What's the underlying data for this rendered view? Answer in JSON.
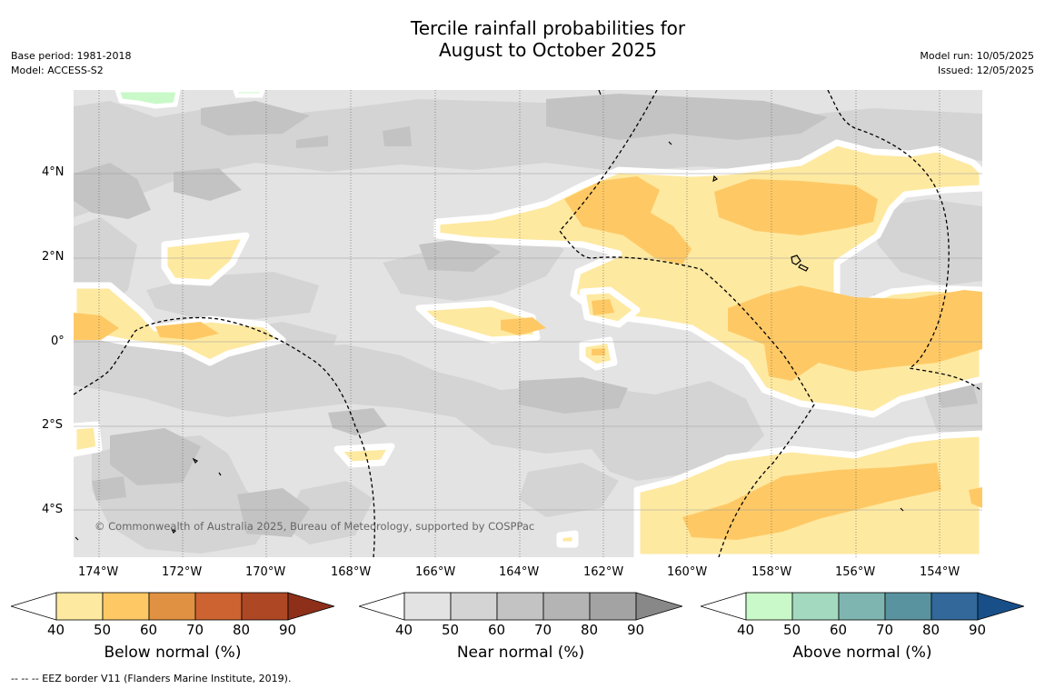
{
  "title_line1": "Tercile rainfall probabilities for",
  "title_line2": "August to October 2025",
  "base_period": "Base period: 1981-2018",
  "model": "Model: ACCESS-S2",
  "model_run": "Model run: 10/05/2025",
  "issued": "Issued: 12/05/2025",
  "copyright": "© Commonwealth of Australia 2025, Bureau of Meteorology, supported by COSPPac",
  "footer": "--  --  -- EEZ border V11 (Flanders Marine Institute, 2019).",
  "map": {
    "lon_labels": [
      "174°W",
      "172°W",
      "170°W",
      "168°W",
      "166°W",
      "164°W",
      "162°W",
      "160°W",
      "158°W",
      "156°W",
      "154°W"
    ],
    "lat_labels": [
      "4°N",
      "2°N",
      "0°",
      "2°S",
      "4°S"
    ],
    "lon_range_deg_east": [
      -174.6,
      -153.0
    ],
    "lat_range_deg": [
      -5.0,
      5.8
    ],
    "colors": {
      "ocean_base": "#e3e3e3",
      "near_normal_50": "#d4d4d4",
      "near_normal_60": "#c3c3c3",
      "below_normal_40": "#fee9a1",
      "below_normal_50": "#fec965",
      "above_normal_40": "#c9f9c9",
      "contour": "#ffffff",
      "eez_line": "#000000"
    }
  },
  "colorbars": [
    {
      "title": "Below normal (%)",
      "ticks": [
        "40",
        "50",
        "60",
        "70",
        "80",
        "90"
      ],
      "colors": [
        "#fee9a1",
        "#fec965",
        "#e09142",
        "#cd6330",
        "#ae4824",
        "#8e2f19"
      ]
    },
    {
      "title": "Near normal (%)",
      "ticks": [
        "40",
        "50",
        "60",
        "70",
        "80",
        "90"
      ],
      "colors": [
        "#e3e3e3",
        "#d4d4d4",
        "#c3c3c3",
        "#b4b4b4",
        "#a3a3a3",
        "#888888"
      ]
    },
    {
      "title": "Above normal (%)",
      "ticks": [
        "40",
        "50",
        "60",
        "70",
        "80",
        "90"
      ],
      "colors": [
        "#c9f9c9",
        "#a3d9bf",
        "#7fb5b0",
        "#5a93a0",
        "#32689a",
        "#184f88"
      ]
    }
  ]
}
